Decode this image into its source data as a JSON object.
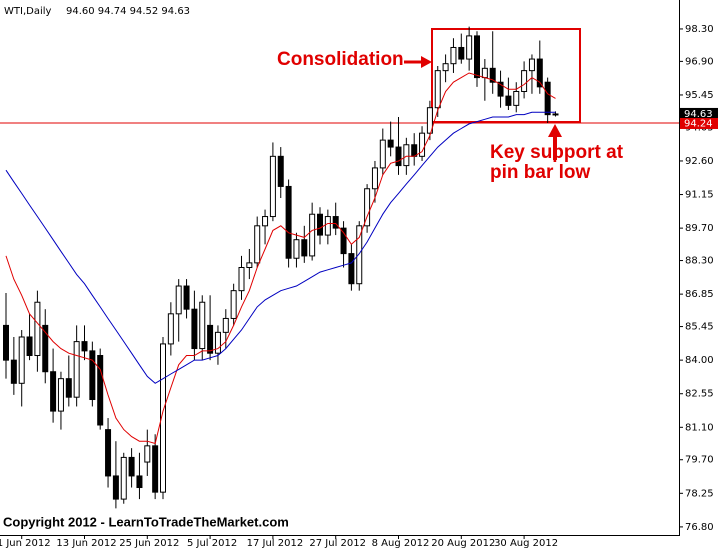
{
  "chart_data": {
    "type": "candlestick",
    "title": "WTI,Daily",
    "ohlc_text": "94.60 94.74 94.52 94.63",
    "categories": [
      null,
      null,
      "1 Jun 2012",
      null,
      null,
      null,
      null,
      null,
      null,
      null,
      "13 Jun 2012",
      null,
      null,
      null,
      null,
      null,
      null,
      null,
      "25 Jun 2012",
      null,
      null,
      null,
      null,
      null,
      null,
      null,
      "5 Jul 2012",
      null,
      null,
      null,
      null,
      null,
      null,
      null,
      "17 Jul 2012",
      null,
      null,
      null,
      null,
      null,
      null,
      null,
      "27 Jul 2012",
      null,
      null,
      null,
      null,
      null,
      null,
      null,
      "8 Aug 2012",
      null,
      null,
      null,
      null,
      null,
      null,
      null,
      "20 Aug 2012",
      null,
      null,
      null,
      null,
      null,
      null,
      null,
      "30 Aug 2012",
      null,
      null,
      null,
      null
    ],
    "open": [
      85.5,
      84.0,
      83.0,
      85.0,
      84.2,
      85.5,
      83.5,
      81.8,
      83.2,
      82.4,
      84.8,
      84.4,
      84.2,
      81.0,
      79.0,
      78.0,
      79.8,
      79.0,
      79.6,
      80.3,
      78.3,
      84.7,
      86.0,
      87.2,
      86.2,
      84.5,
      85.5,
      84.3,
      85.2,
      85.8,
      87.0,
      88.0,
      88.2,
      89.8,
      90.2,
      92.8,
      91.5,
      88.4,
      89.2,
      88.5,
      90.3,
      89.4,
      90.2,
      89.7,
      88.6,
      87.3,
      89.8,
      91.4,
      92.3,
      93.5,
      93.2,
      92.4,
      93.3,
      92.8,
      93.8,
      94.9,
      96.5,
      96.8,
      97.5,
      97.0,
      98.0,
      96.2,
      96.6,
      96.0,
      95.4,
      95.0,
      95.6,
      96.5,
      97.0,
      96.0,
      94.6
    ],
    "high": [
      86.9,
      85.0,
      85.3,
      86.0,
      87.0,
      86.2,
      84.5,
      83.5,
      84.2,
      85.5,
      85.5,
      84.8,
      84.5,
      81.5,
      80.5,
      80.0,
      80.2,
      80.0,
      81.0,
      80.8,
      85.0,
      86.5,
      87.5,
      87.5,
      87.0,
      86.8,
      86.8,
      85.5,
      86.2,
      87.3,
      88.5,
      88.8,
      90.2,
      90.5,
      93.4,
      93.2,
      91.8,
      89.5,
      89.8,
      90.8,
      90.6,
      90.5,
      90.8,
      90.0,
      89.0,
      90.0,
      91.6,
      92.6,
      94.0,
      94.3,
      94.5,
      93.6,
      93.8,
      94.1,
      95.2,
      96.7,
      97.2,
      97.9,
      98.1,
      98.4,
      98.2,
      97.0,
      98.2,
      96.5,
      96.2,
      96.0,
      96.9,
      97.2,
      97.8,
      96.2,
      94.74
    ],
    "low": [
      83.2,
      82.5,
      82.0,
      84.0,
      83.5,
      83.0,
      81.3,
      81.0,
      82.0,
      82.0,
      84.0,
      82.0,
      81.0,
      78.5,
      77.6,
      77.8,
      78.5,
      78.0,
      79.0,
      78.0,
      78.0,
      84.2,
      84.8,
      85.8,
      84.0,
      84.0,
      84.0,
      83.8,
      84.5,
      85.5,
      86.6,
      87.5,
      88.0,
      89.0,
      90.0,
      91.0,
      88.0,
      88.0,
      88.2,
      88.3,
      89.0,
      89.0,
      89.4,
      88.0,
      87.0,
      87.0,
      89.5,
      90.8,
      92.0,
      92.8,
      92.0,
      92.0,
      92.4,
      92.6,
      93.5,
      94.5,
      96.0,
      96.4,
      96.8,
      96.5,
      95.8,
      95.2,
      95.5,
      94.9,
      94.8,
      94.7,
      95.3,
      95.5,
      95.5,
      94.24,
      94.52
    ],
    "close": [
      84.0,
      83.0,
      85.0,
      84.2,
      86.5,
      83.5,
      81.8,
      83.2,
      82.4,
      84.8,
      84.4,
      82.3,
      81.2,
      79.0,
      78.0,
      79.8,
      79.0,
      78.5,
      80.3,
      78.3,
      84.7,
      86.0,
      87.2,
      86.2,
      84.5,
      86.5,
      84.3,
      85.2,
      85.8,
      87.0,
      88.0,
      88.2,
      89.8,
      90.2,
      92.8,
      91.5,
      88.4,
      89.2,
      88.5,
      90.3,
      89.4,
      90.2,
      89.7,
      88.6,
      87.3,
      89.8,
      91.4,
      92.3,
      93.5,
      93.2,
      92.4,
      93.3,
      92.8,
      93.8,
      94.9,
      96.5,
      96.8,
      97.5,
      97.0,
      98.0,
      96.2,
      96.6,
      96.0,
      95.4,
      95.0,
      95.6,
      96.5,
      97.0,
      95.8,
      94.6,
      94.63
    ],
    "lines": [
      {
        "color": "#e00000",
        "values": [
          88.5,
          87.5,
          86.8,
          86.0,
          85.6,
          85.2,
          84.8,
          84.5,
          84.3,
          84.2,
          84.1,
          84.0,
          83.6,
          82.5,
          81.5,
          81.0,
          80.7,
          80.5,
          80.5,
          80.4,
          81.8,
          82.8,
          83.8,
          84.2,
          84.2,
          84.4,
          84.4,
          84.5,
          84.8,
          85.5,
          86.3,
          87.0,
          88.0,
          88.8,
          89.6,
          89.8,
          89.5,
          89.4,
          89.3,
          89.6,
          89.7,
          89.9,
          89.9,
          89.5,
          89.0,
          89.3,
          90.2,
          91.0,
          92.0,
          92.5,
          92.6,
          92.8,
          92.8,
          93.0,
          93.7,
          94.8,
          95.6,
          96.0,
          96.2,
          96.4,
          96.3,
          96.2,
          96.1,
          95.9,
          95.7,
          95.7,
          95.9,
          96.2,
          96.0,
          95.5,
          95.3
        ]
      },
      {
        "color": "#0000c0",
        "values": [
          92.2,
          91.7,
          91.2,
          90.7,
          90.2,
          89.7,
          89.2,
          88.7,
          88.2,
          87.7,
          87.3,
          86.8,
          86.3,
          85.8,
          85.3,
          84.8,
          84.3,
          83.8,
          83.3,
          83.0,
          83.2,
          83.4,
          83.6,
          83.8,
          84.0,
          84.0,
          84.1,
          84.2,
          84.5,
          84.9,
          85.3,
          85.8,
          86.3,
          86.6,
          86.8,
          87.0,
          87.1,
          87.2,
          87.4,
          87.6,
          87.8,
          87.9,
          88.0,
          88.1,
          88.2,
          88.6,
          89.1,
          89.7,
          90.3,
          90.8,
          91.2,
          91.6,
          92.0,
          92.4,
          92.8,
          93.2,
          93.5,
          93.8,
          94.0,
          94.2,
          94.3,
          94.4,
          94.5,
          94.5,
          94.5,
          94.6,
          94.6,
          94.7,
          94.7,
          94.7,
          94.7
        ]
      }
    ],
    "ylim": [
      76.45,
      99.55
    ],
    "yticks": [
      {
        "value": 76.8,
        "label": "76.80"
      },
      {
        "value": 78.25,
        "label": "78.25"
      },
      {
        "value": 79.7,
        "label": "79.70"
      },
      {
        "value": 81.1,
        "label": "81.10"
      },
      {
        "value": 82.55,
        "label": "82.55"
      },
      {
        "value": 84.0,
        "label": "84.00"
      },
      {
        "value": 85.45,
        "label": "85.45"
      },
      {
        "value": 86.85,
        "label": "86.85"
      },
      {
        "value": 88.3,
        "label": "88.30"
      },
      {
        "value": 89.7,
        "label": "89.70"
      },
      {
        "value": 91.15,
        "label": "91.15"
      },
      {
        "value": 92.6,
        "label": "92.60"
      },
      {
        "value": 94.05,
        "label": "94.05"
      },
      {
        "value": 95.45,
        "label": "95.45"
      },
      {
        "value": 96.9,
        "label": "96.90"
      },
      {
        "value": 98.3,
        "label": "98.30"
      }
    ],
    "last_price": {
      "value": 94.63,
      "label": "94.63"
    },
    "support": {
      "value": 94.24,
      "label": "94.24",
      "color": "#e00000"
    },
    "annotations": {
      "consolidation": "Consolidation",
      "support_note": [
        "Key support at",
        "pin bar low"
      ]
    },
    "copyright": "Copyright 2012 - LearnToTradeTheMarket.com"
  }
}
